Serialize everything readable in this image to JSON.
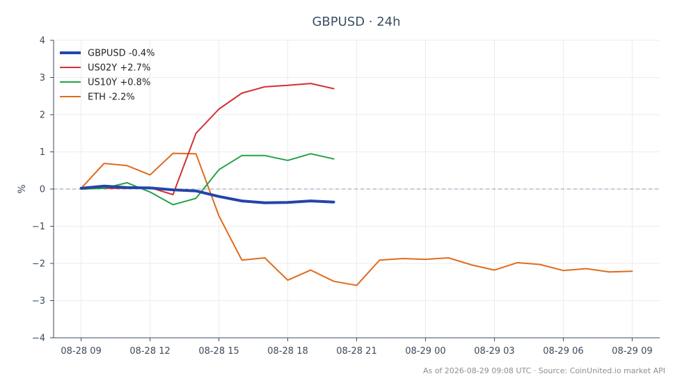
{
  "chart_data": {
    "type": "line",
    "title": "GBPUSD · 24h",
    "ylabel": "%",
    "xlabel": "",
    "ylim": [
      -4,
      4
    ],
    "yticks": [
      -4,
      -3,
      -2,
      -1,
      0,
      1,
      2,
      3,
      4
    ],
    "ytick_labels": [
      "−4",
      "−3",
      "−2",
      "−1",
      "0",
      "1",
      "2",
      "3",
      "4"
    ],
    "x_range": [
      -1.2,
      25.2
    ],
    "xticks": [
      0,
      3,
      6,
      9,
      12,
      15,
      18,
      21,
      24
    ],
    "xtick_labels": [
      "08-28 09",
      "08-28 12",
      "08-28 15",
      "08-28 18",
      "08-28 21",
      "08-29 00",
      "08-29 03",
      "08-29 06",
      "08-29 09"
    ],
    "grid": true,
    "zero_line": true,
    "legend_position": "top-left",
    "series": [
      {
        "name": "GBPUSD -0.4%",
        "color": "#2444a8",
        "bold": true,
        "x": [
          0,
          1,
          2,
          3,
          4,
          5,
          6,
          7,
          8,
          9,
          10,
          11
        ],
        "y": [
          0.02,
          0.08,
          0.04,
          0.03,
          -0.02,
          -0.05,
          -0.2,
          -0.32,
          -0.37,
          -0.36,
          -0.32,
          -0.35
        ]
      },
      {
        "name": "US02Y +2.7%",
        "color": "#d32f2f",
        "bold": false,
        "x": [
          0,
          1,
          2,
          3,
          4,
          5,
          6,
          7,
          8,
          9,
          10,
          11
        ],
        "y": [
          0.0,
          0.02,
          0.02,
          0.04,
          -0.15,
          1.5,
          2.15,
          2.58,
          2.75,
          2.79,
          2.84,
          2.7
        ]
      },
      {
        "name": "US10Y +0.8%",
        "color": "#22a245",
        "bold": false,
        "x": [
          0,
          1,
          2,
          3,
          4,
          5,
          6,
          7,
          8,
          9,
          10,
          11
        ],
        "y": [
          0.0,
          0.02,
          0.17,
          -0.08,
          -0.42,
          -0.25,
          0.52,
          0.9,
          0.9,
          0.77,
          0.95,
          0.81
        ]
      },
      {
        "name": "ETH -2.2%",
        "color": "#e06a1b",
        "bold": false,
        "x": [
          0,
          1,
          2,
          3,
          4,
          5,
          6,
          7,
          8,
          9,
          10,
          11,
          12,
          13,
          14,
          15,
          16,
          17,
          18,
          19,
          20,
          21,
          22,
          23,
          24
        ],
        "y": [
          0.02,
          0.69,
          0.63,
          0.38,
          0.96,
          0.95,
          -0.72,
          -1.91,
          -1.85,
          -2.45,
          -2.18,
          -2.48,
          -2.59,
          -1.91,
          -1.87,
          -1.89,
          -1.85,
          -2.04,
          -2.18,
          -1.98,
          -2.03,
          -2.19,
          -2.14,
          -2.23,
          -2.21
        ]
      }
    ],
    "footer": "As of 2026-08-29 09:08 UTC · Source: CoinUnited.io market API"
  }
}
